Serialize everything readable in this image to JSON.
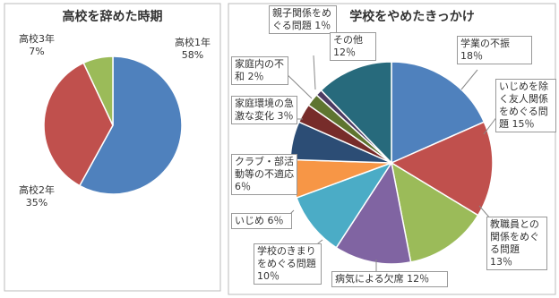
{
  "chart_data": [
    {
      "type": "pie",
      "title": "高校を辞めた時期",
      "categories": [
        "高校1年",
        "高校2年",
        "高校3年"
      ],
      "values": [
        58,
        35,
        7
      ],
      "value_labels": [
        "58%",
        "35%",
        "7%"
      ],
      "colors": [
        "#4f81bd",
        "#c0504d",
        "#9bbb59"
      ]
    },
    {
      "type": "pie",
      "title": "学校をやめたきっかけ",
      "categories": [
        "学業の不振",
        "いじめを除く友人関係をめぐる問題",
        "教職員との関係をめぐる問題",
        "病気による欠席",
        "学校のきまりをめぐる問題",
        "いじめ",
        "クラブ・部活動等の不適応",
        "家庭環境の急激な変化",
        "家庭内の不和",
        "親子関係をめぐる問題",
        "その他"
      ],
      "values": [
        18,
        15,
        13,
        12,
        10,
        6,
        6,
        3,
        2,
        1,
        12
      ],
      "value_labels": [
        "18％",
        "15％",
        "13％",
        "12％",
        "10％",
        "6％",
        "6％",
        "3％",
        "2％",
        "1％",
        "12％"
      ],
      "colors": [
        "#4f81bd",
        "#c0504d",
        "#9bbb59",
        "#8064a2",
        "#4bacc6",
        "#f79646",
        "#2c4d75",
        "#772c2a",
        "#5f7530",
        "#4d3b62",
        "#276a7c"
      ]
    }
  ]
}
